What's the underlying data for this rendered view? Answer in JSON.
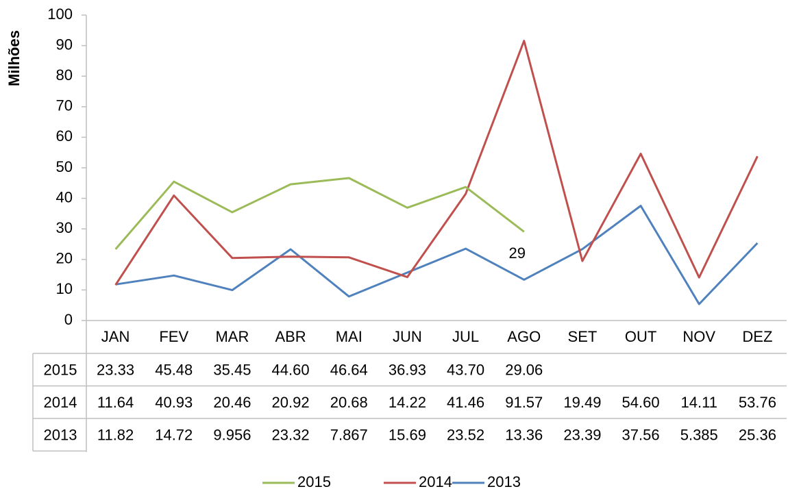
{
  "chart_data": {
    "type": "line",
    "y_axis_label": "Milhões",
    "categories": [
      "JAN",
      "FEV",
      "MAR",
      "ABR",
      "MAI",
      "JUN",
      "JUL",
      "AGO",
      "SET",
      "OUT",
      "NOV",
      "DEZ"
    ],
    "series": [
      {
        "name": "2015",
        "color": "#9bbb59",
        "values": [
          23.33,
          45.48,
          35.45,
          44.6,
          46.64,
          36.93,
          43.7,
          29.06,
          null,
          null,
          null,
          null
        ],
        "value_labels": [
          "23.33",
          "45.48",
          "35.45",
          "44.60",
          "46.64",
          "36.93",
          "43.70",
          "29.06",
          null,
          null,
          null,
          null
        ]
      },
      {
        "name": "2014",
        "color": "#c0504d",
        "values": [
          11.64,
          40.93,
          20.46,
          20.92,
          20.68,
          14.22,
          41.46,
          91.57,
          19.49,
          54.6,
          14.11,
          53.76
        ],
        "value_labels": [
          "11.64",
          "40.93",
          "20.46",
          "20.92",
          "20.68",
          "14.22",
          "41.46",
          "91.57",
          "19.49",
          "54.60",
          "14.11",
          "53.76"
        ]
      },
      {
        "name": "2013",
        "color": "#4f81bd",
        "values": [
          11.82,
          14.72,
          9.956,
          23.32,
          7.867,
          15.69,
          23.52,
          13.36,
          23.39,
          37.56,
          5.385,
          25.36
        ],
        "value_labels": [
          "11.82",
          "14.72",
          "9.956",
          "23.32",
          "7.867",
          "15.69",
          "23.52",
          "13.36",
          "23.39",
          "37.56",
          "5.385",
          "25.36"
        ]
      }
    ],
    "annotation": "29",
    "ylim": [
      0,
      100
    ],
    "yticks": [
      0,
      10,
      20,
      30,
      40,
      50,
      60,
      70,
      80,
      90,
      100
    ],
    "grid": false,
    "legend": "bottom"
  }
}
